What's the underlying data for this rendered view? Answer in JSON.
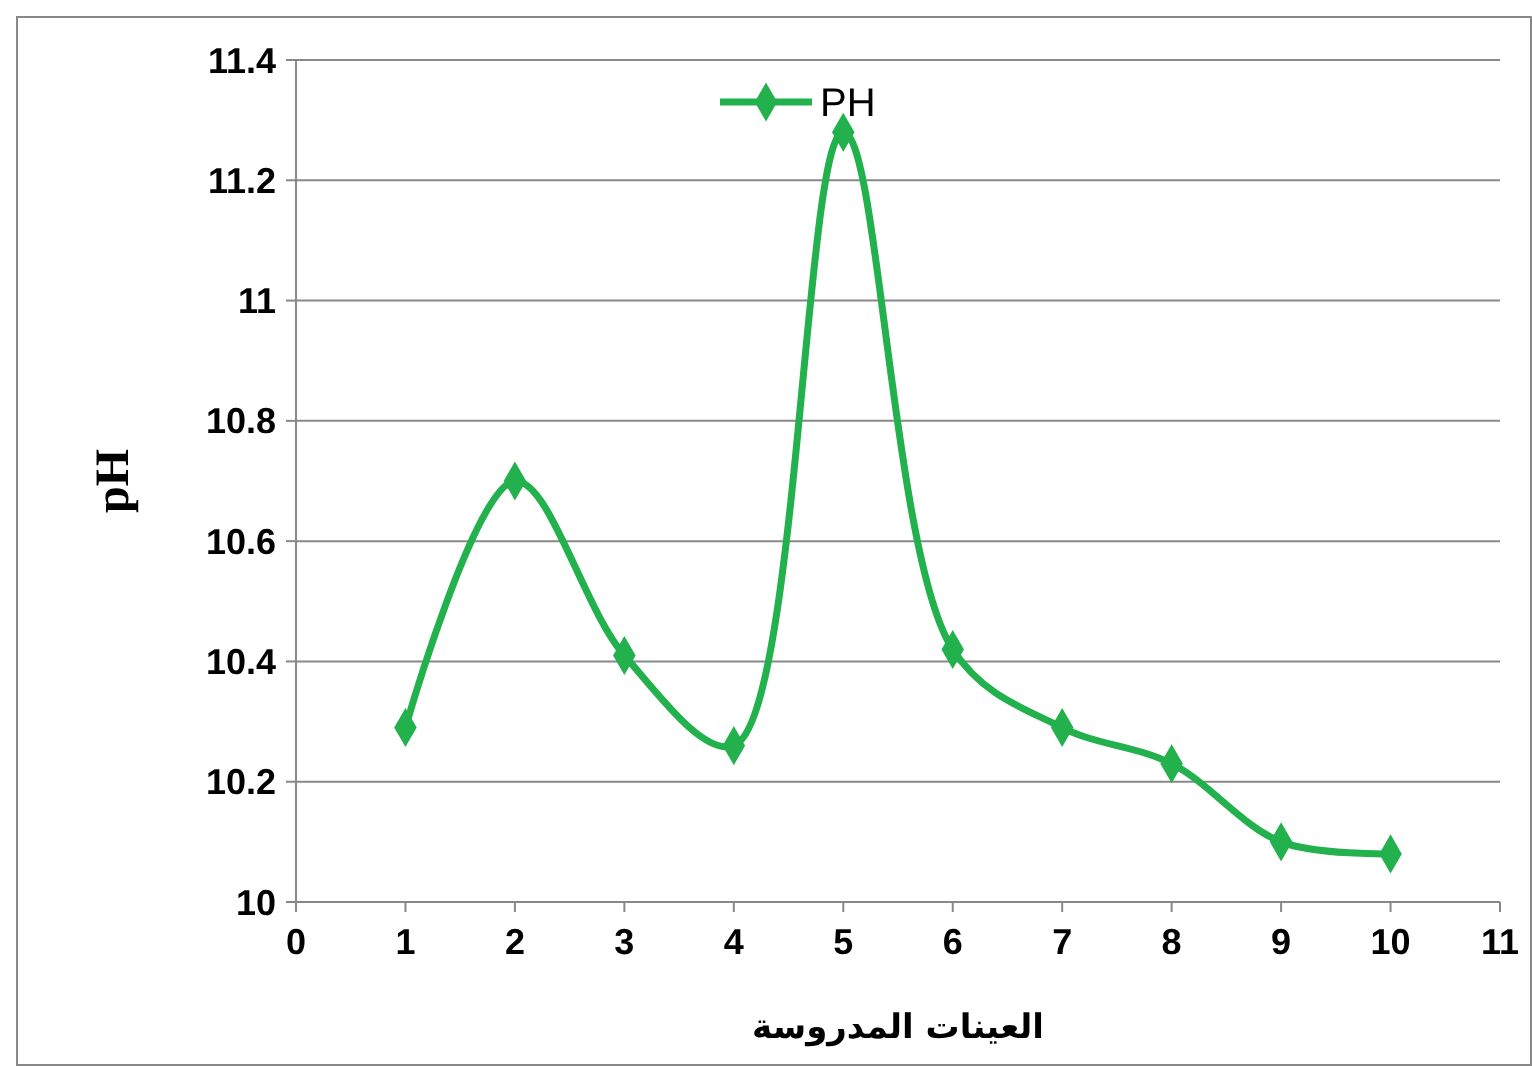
{
  "chart_data": {
    "type": "line",
    "xlabel": "العينات المدروسة",
    "ylabel": "pH",
    "x": [
      1,
      2,
      3,
      4,
      5,
      6,
      7,
      8,
      9,
      10
    ],
    "series": [
      {
        "name": "PH",
        "color": "#22b14c",
        "values": [
          10.29,
          10.7,
          10.41,
          10.26,
          11.28,
          10.42,
          10.29,
          10.23,
          10.1,
          10.08
        ]
      }
    ],
    "xlim": [
      0,
      11
    ],
    "xticks": [
      0,
      1,
      2,
      3,
      4,
      5,
      6,
      7,
      8,
      9,
      10,
      11
    ],
    "ylim": [
      10,
      11.4
    ],
    "yticks": [
      {
        "value": 10,
        "label": "10"
      },
      {
        "value": 10.2,
        "label": "10.2"
      },
      {
        "value": 10.4,
        "label": "10.4"
      },
      {
        "value": 10.6,
        "label": "10.6"
      },
      {
        "value": 10.8,
        "label": "10.8"
      },
      {
        "value": 11,
        "label": "11"
      },
      {
        "value": 11.2,
        "label": "11.2"
      },
      {
        "value": 11.4,
        "label": "11.4"
      }
    ],
    "grid": "y",
    "legend": "top",
    "marker": "diamond",
    "line_style": "solid"
  }
}
